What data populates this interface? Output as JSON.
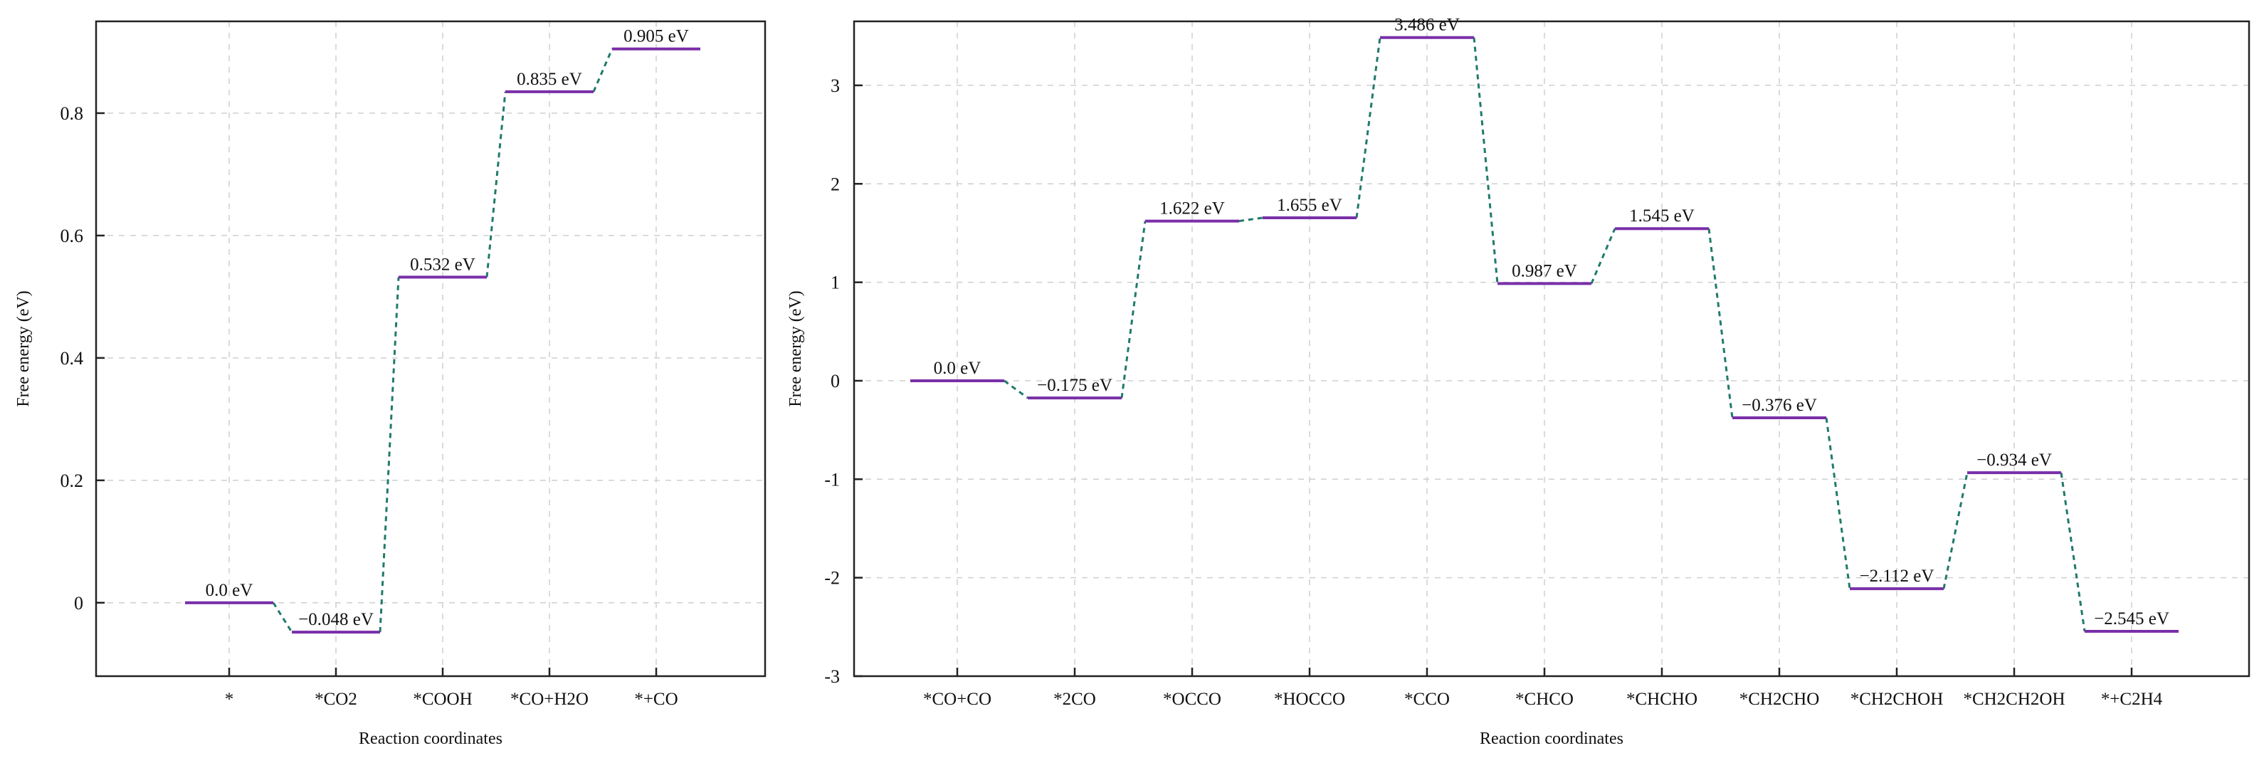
{
  "chart_data": [
    {
      "type": "line",
      "subtype": "energy-level-diagram",
      "title": "",
      "xlabel": "Reaction coordinates",
      "ylabel": "Free energy (eV)",
      "ylim": [
        -0.12,
        0.95
      ],
      "yticks": [
        0,
        0.2,
        0.4,
        0.6,
        0.8
      ],
      "ytick_labels": [
        "0",
        "0.2",
        "0.4",
        "0.6",
        "0.8"
      ],
      "grid": true,
      "categories": [
        "*",
        "*CO2",
        "*COOH",
        "*CO+H2O",
        "*+CO"
      ],
      "values": [
        0.0,
        -0.048,
        0.532,
        0.835,
        0.905
      ],
      "labels": [
        "0.0 eV",
        "−0.048 eV",
        "0.532 eV",
        "0.835 eV",
        "0.905 eV"
      ],
      "colors": {
        "level": "#7a2fa8",
        "connector": "#1f7a6a"
      }
    },
    {
      "type": "line",
      "subtype": "energy-level-diagram",
      "title": "",
      "xlabel": "Reaction coordinates",
      "ylabel": "Free energy (eV)",
      "ylim": [
        -3,
        3.65
      ],
      "yticks": [
        -3,
        -2,
        -1,
        0,
        1,
        2,
        3
      ],
      "ytick_labels": [
        "-3",
        "-2",
        "-1",
        "0",
        "1",
        "2",
        "3"
      ],
      "grid": true,
      "categories": [
        "*CO+CO",
        "*2CO",
        "*OCCO",
        "*HOCCO",
        "*CCO",
        "*CHCO",
        "*CHCHO",
        "*CH2CHO",
        "*CH2CHOH",
        "*CH2CH2OH",
        "*+C2H4"
      ],
      "values": [
        0.0,
        -0.175,
        1.622,
        1.655,
        3.486,
        0.987,
        1.545,
        -0.376,
        -2.112,
        -0.934,
        -2.545
      ],
      "labels": [
        "0.0 eV",
        "−0.175 eV",
        "1.622 eV",
        "1.655 eV",
        "3.486 eV",
        "0.987 eV",
        "1.545 eV",
        "−0.376 eV",
        "−2.112 eV",
        "−0.934 eV",
        "−2.545 eV"
      ],
      "colors": {
        "level": "#7a2fa8",
        "connector": "#1f7a6a"
      }
    }
  ]
}
